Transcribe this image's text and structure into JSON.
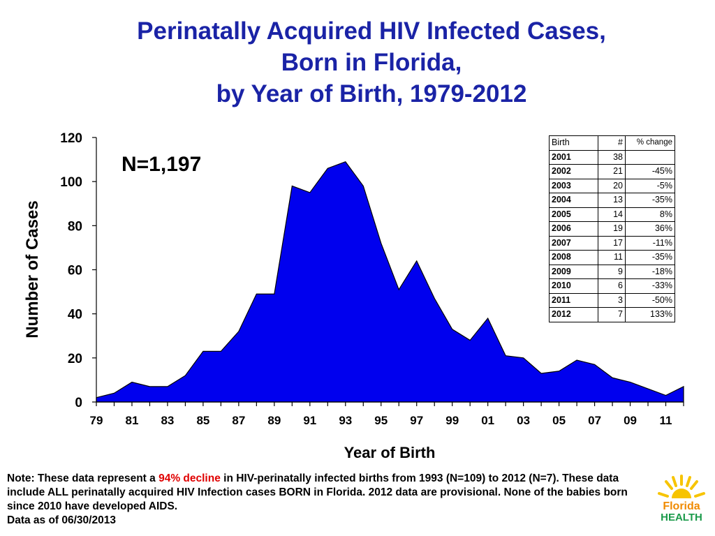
{
  "title_lines": [
    "Perinatally Acquired HIV Infected Cases,",
    "Born in Florida,",
    "by Year of Birth, 1979-2012"
  ],
  "colors": {
    "title": "#1a23a6",
    "area_fill": "#0000ee",
    "highlight": "#e00000"
  },
  "chart_data": {
    "type": "area",
    "title": "Perinatally Acquired HIV Infected Cases, Born in Florida, by Year of Birth, 1979-2012",
    "xlabel": "Year of Birth",
    "ylabel": "Number of Cases",
    "x": [
      "79",
      "80",
      "81",
      "82",
      "83",
      "84",
      "85",
      "86",
      "87",
      "88",
      "89",
      "90",
      "91",
      "92",
      "93",
      "94",
      "95",
      "96",
      "97",
      "98",
      "99",
      "00",
      "01",
      "02",
      "03",
      "04",
      "05",
      "06",
      "07",
      "08",
      "09",
      "10",
      "11",
      "12"
    ],
    "values": [
      2,
      4,
      9,
      7,
      7,
      12,
      23,
      23,
      32,
      49,
      49,
      98,
      95,
      106,
      109,
      98,
      72,
      51,
      64,
      47,
      33,
      28,
      38,
      21,
      20,
      13,
      14,
      19,
      17,
      11,
      9,
      6,
      3,
      7
    ],
    "xticks": [
      "79",
      "81",
      "83",
      "85",
      "87",
      "89",
      "91",
      "93",
      "95",
      "97",
      "99",
      "01",
      "03",
      "05",
      "07",
      "09",
      "11"
    ],
    "yticks": [
      "0",
      "20",
      "40",
      "60",
      "80",
      "100",
      "120"
    ],
    "ylim": [
      0,
      120
    ],
    "grid": false,
    "annotation": "N=1,197"
  },
  "table": {
    "headers": [
      "Birth",
      "#",
      "% change"
    ],
    "rows": [
      {
        "year": "2001",
        "count": "38",
        "pct": ""
      },
      {
        "year": "2002",
        "count": "21",
        "pct": "-45%"
      },
      {
        "year": "2003",
        "count": "20",
        "pct": "-5%"
      },
      {
        "year": "2004",
        "count": "13",
        "pct": "-35%"
      },
      {
        "year": "2005",
        "count": "14",
        "pct": "8%"
      },
      {
        "year": "2006",
        "count": "19",
        "pct": "36%"
      },
      {
        "year": "2007",
        "count": "17",
        "pct": "-11%"
      },
      {
        "year": "2008",
        "count": "11",
        "pct": "-35%"
      },
      {
        "year": "2009",
        "count": "9",
        "pct": "-18%"
      },
      {
        "year": "2010",
        "count": "6",
        "pct": "-33%"
      },
      {
        "year": "2011",
        "count": "3",
        "pct": "-50%"
      },
      {
        "year": "2012",
        "count": "7",
        "pct": "133%"
      }
    ]
  },
  "note": {
    "before": "Note:  These data represent a ",
    "highlight": "94% decline",
    "after": " in HIV-perinatally infected births from 1993 (N=109) to 2012 (N=7).   These data include ALL perinatally acquired HIV Infection cases BORN in Florida.  2012 data are provisional.  None of the babies born since 2010 have developed AIDS.",
    "date_line": "Data as of 06/30/2013"
  },
  "logo": {
    "line1": "Florida",
    "line2": "HEALTH",
    "sun_color": "#f7c400",
    "text_color_1": "#f08a00",
    "text_color_2": "#1a9a4a"
  }
}
